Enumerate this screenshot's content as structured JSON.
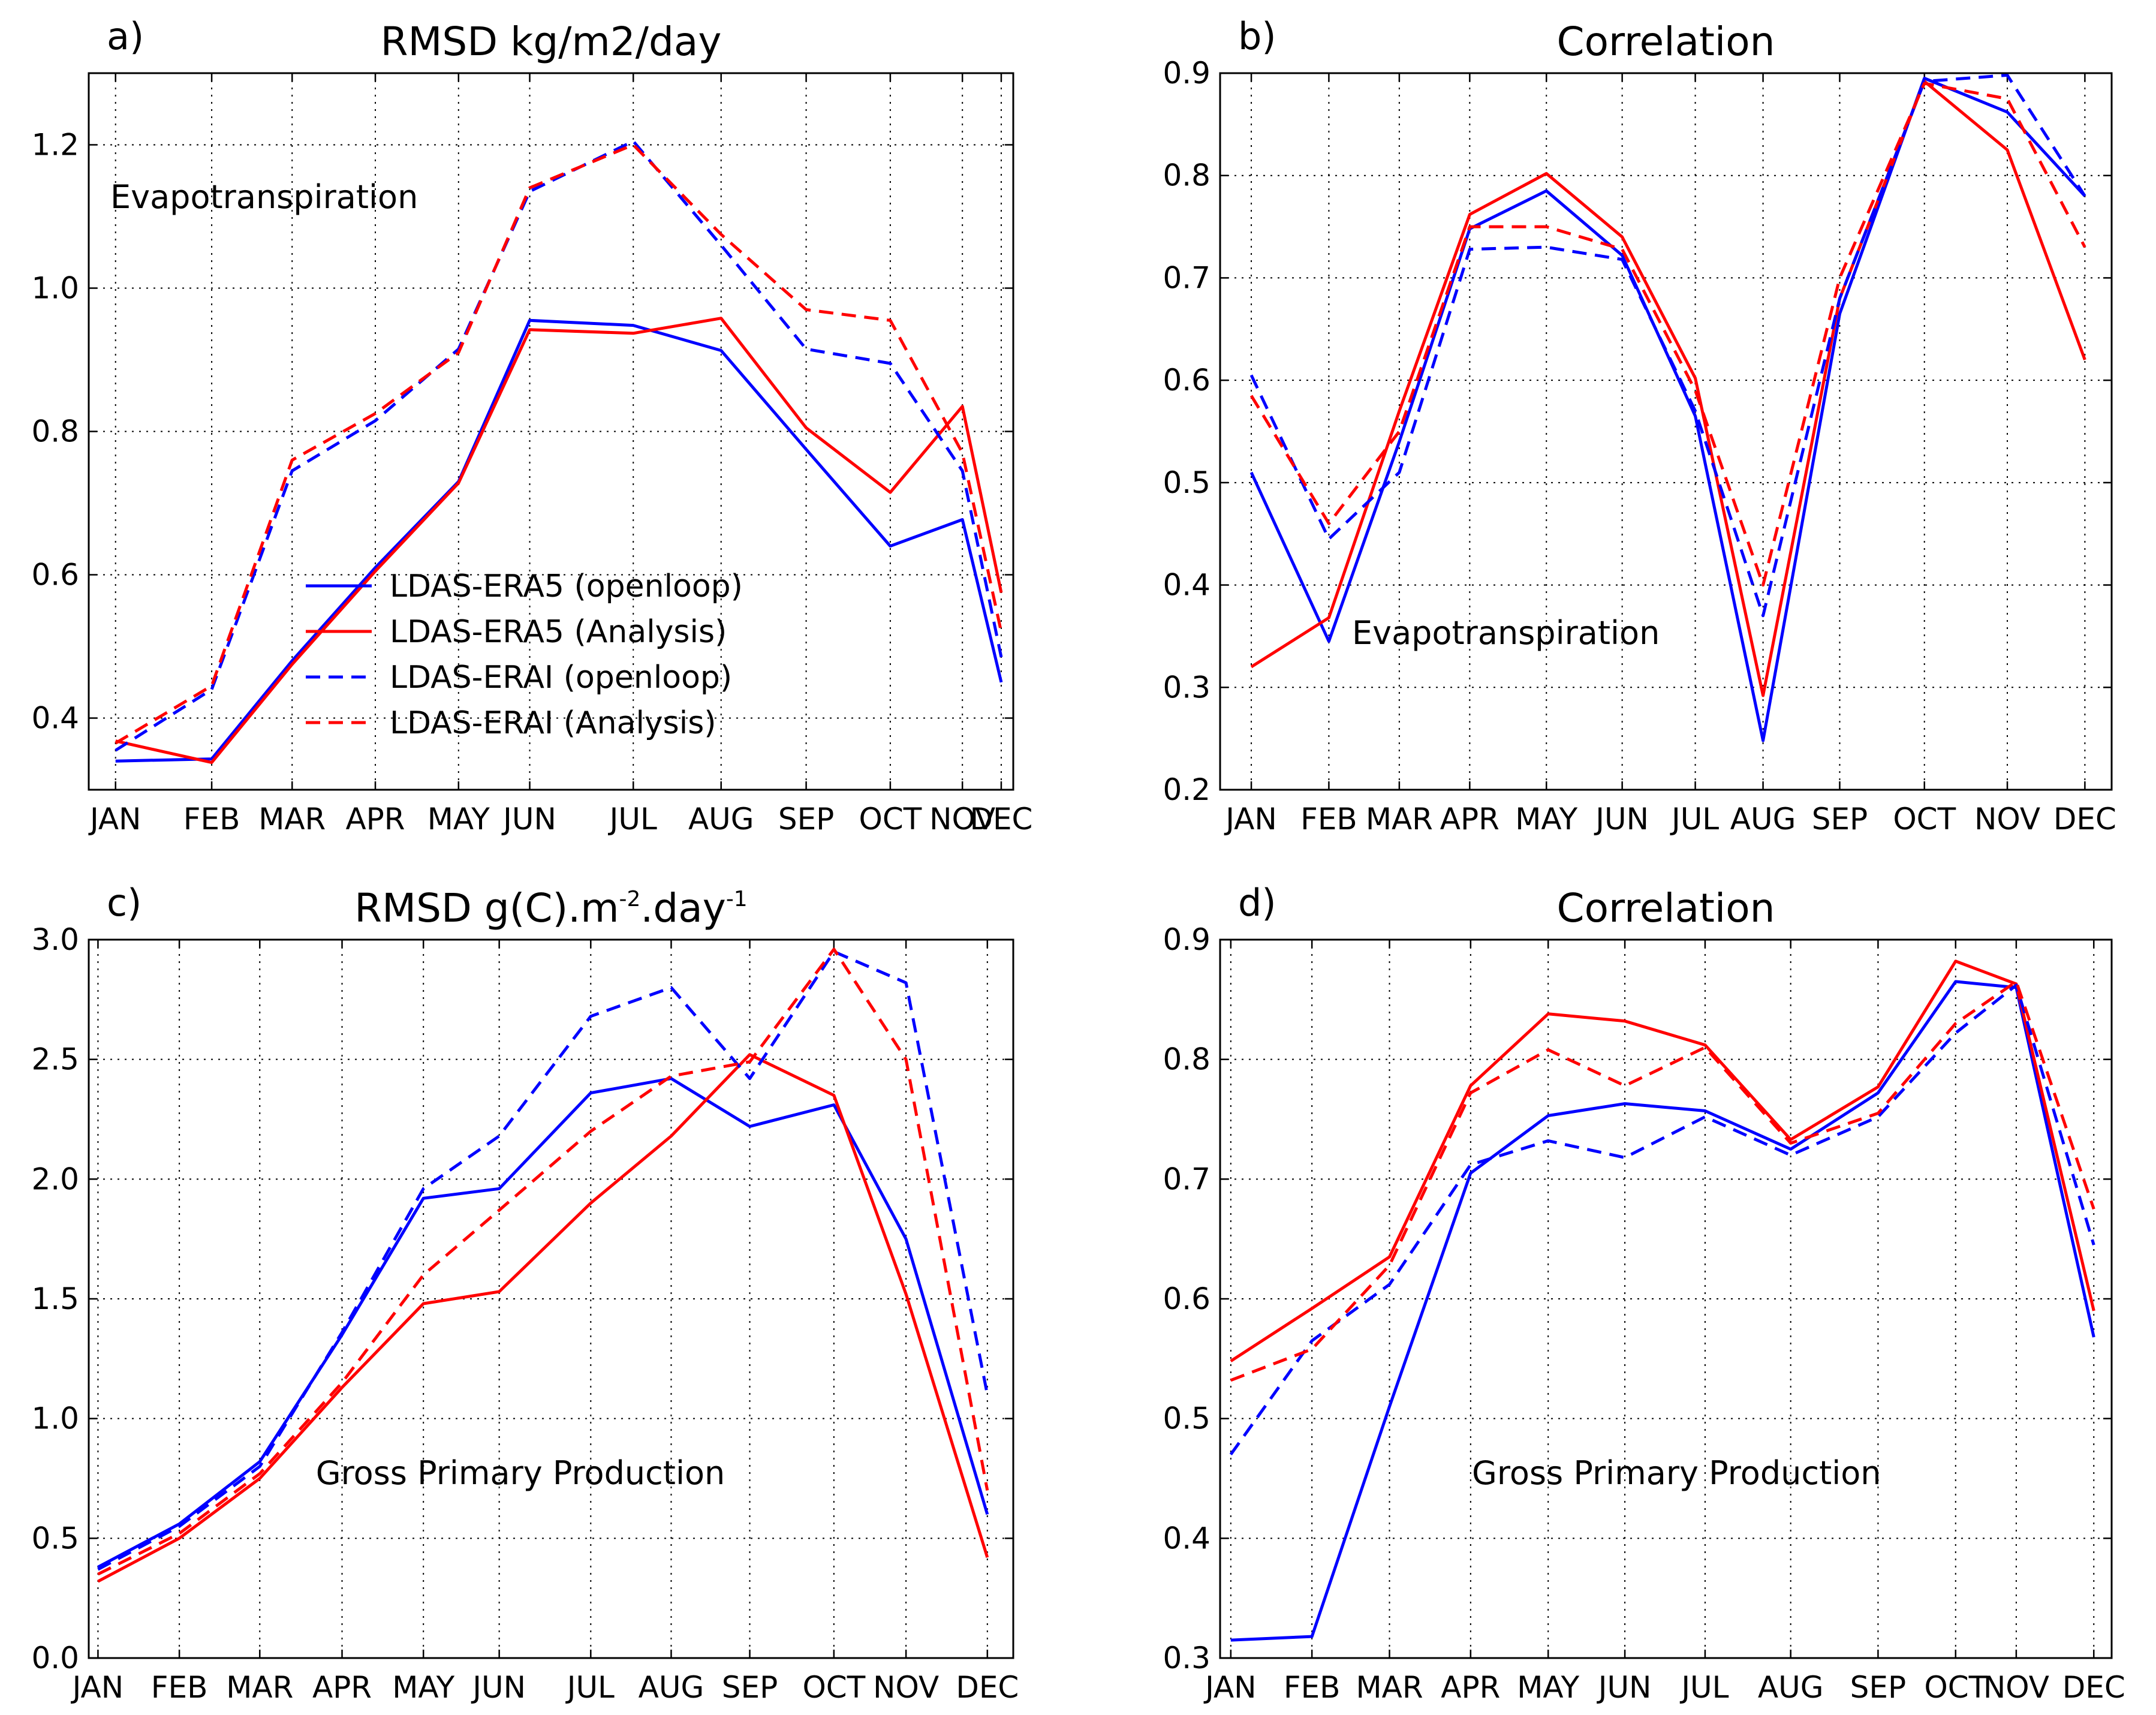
{
  "figure": {
    "months": [
      "JAN",
      "FEB",
      "MAR",
      "APR",
      "MAY",
      "JUN",
      "JUL",
      "AUG",
      "SEP",
      "OCT",
      "NOV",
      "DEC"
    ],
    "series_styles": [
      {
        "name": "LDAS-ERA5 (openloop)",
        "color": "#0000ff",
        "dash": "solid"
      },
      {
        "name": "LDAS-ERA5 (Analysis)",
        "color": "#ff0000",
        "dash": "solid"
      },
      {
        "name": "LDAS-ERAI (openloop)",
        "color": "#0000ff",
        "dash": "dashed"
      },
      {
        "name": "LDAS-ERAI (Analysis)",
        "color": "#ff0000",
        "dash": "dashed"
      }
    ]
  },
  "chart_data": [
    {
      "type": "line",
      "panel": "a)",
      "title": "RMSD kg/m2/day",
      "annotation": "Evapotranspiration",
      "legend_position": "center",
      "categories": [
        "JAN",
        "FEB",
        "MAR",
        "APR",
        "MAY",
        "JUN",
        "JUL",
        "AUG",
        "SEP",
        "OCT",
        "NOV",
        "DEC"
      ],
      "ylim": [
        0.3,
        1.3
      ],
      "yticks": [
        0.4,
        0.6,
        0.8,
        1.0,
        1.2
      ],
      "ytick_labels": [
        "0.4",
        "0.6",
        "0.8",
        "1.0",
        "1.2"
      ],
      "series": [
        {
          "name": "LDAS-ERA5 (openloop)",
          "values": [
            0.34,
            0.343,
            0.48,
            0.61,
            0.73,
            0.955,
            0.948,
            0.913,
            0.775,
            0.64,
            0.677,
            0.45
          ]
        },
        {
          "name": "LDAS-ERA5 (Analysis)",
          "values": [
            0.368,
            0.338,
            0.475,
            0.605,
            0.728,
            0.942,
            0.937,
            0.958,
            0.805,
            0.715,
            0.835,
            0.575
          ]
        },
        {
          "name": "LDAS-ERAI (openloop)",
          "values": [
            0.355,
            0.44,
            0.745,
            0.815,
            0.915,
            1.135,
            1.205,
            1.06,
            0.915,
            0.895,
            0.745,
            0.485
          ]
        },
        {
          "name": "LDAS-ERAI (Analysis)",
          "values": [
            0.365,
            0.445,
            0.76,
            0.825,
            0.91,
            1.14,
            1.2,
            1.075,
            0.97,
            0.955,
            0.77,
            0.52
          ]
        }
      ]
    },
    {
      "type": "line",
      "panel": "b)",
      "title": "Correlation",
      "annotation": "Evapotranspiration",
      "categories": [
        "JAN",
        "FEB",
        "MAR",
        "APR",
        "MAY",
        "JUN",
        "JUL",
        "AUG",
        "SEP",
        "OCT",
        "NOV",
        "DEC"
      ],
      "ylim": [
        0.2,
        0.9
      ],
      "yticks": [
        0.2,
        0.3,
        0.4,
        0.5,
        0.6,
        0.7,
        0.8,
        0.9
      ],
      "ytick_labels": [
        "0.2",
        "0.3",
        "0.4",
        "0.5",
        "0.6",
        "0.7",
        "0.8",
        "0.9"
      ],
      "series": [
        {
          "name": "LDAS-ERA5 (openloop)",
          "values": [
            0.51,
            0.345,
            0.54,
            0.748,
            0.785,
            0.722,
            0.565,
            0.248,
            0.665,
            0.895,
            0.862,
            0.78
          ]
        },
        {
          "name": "LDAS-ERA5 (Analysis)",
          "values": [
            0.32,
            0.368,
            0.57,
            0.762,
            0.802,
            0.74,
            0.602,
            0.292,
            0.68,
            0.892,
            0.825,
            0.62
          ]
        },
        {
          "name": "LDAS-ERAI (openloop)",
          "values": [
            0.605,
            0.445,
            0.51,
            0.728,
            0.73,
            0.718,
            0.57,
            0.37,
            0.68,
            0.892,
            0.898,
            0.78
          ]
        },
        {
          "name": "LDAS-ERAI (Analysis)",
          "values": [
            0.585,
            0.46,
            0.55,
            0.75,
            0.75,
            0.728,
            0.59,
            0.4,
            0.7,
            0.89,
            0.875,
            0.73
          ]
        }
      ]
    },
    {
      "type": "line",
      "panel": "c)",
      "title": "RMSD g(C).m",
      "title_sup1": "-2",
      "title_mid": ".day",
      "title_sup2": "-1",
      "annotation": "Gross Primary Production",
      "categories": [
        "JAN",
        "FEB",
        "MAR",
        "APR",
        "MAY",
        "JUN",
        "JUL",
        "AUG",
        "SEP",
        "OCT",
        "NOV",
        "DEC"
      ],
      "ylim": [
        0.0,
        3.0
      ],
      "yticks": [
        0.0,
        0.5,
        1.0,
        1.5,
        2.0,
        2.5,
        3.0
      ],
      "ytick_labels": [
        "0.0",
        "0.5",
        "1.0",
        "1.5",
        "2.0",
        "2.5",
        "3.0"
      ],
      "series": [
        {
          "name": "LDAS-ERA5 (openloop)",
          "values": [
            0.38,
            0.56,
            0.82,
            1.35,
            1.92,
            1.96,
            2.36,
            2.42,
            2.22,
            2.31,
            1.75,
            0.6
          ]
        },
        {
          "name": "LDAS-ERA5 (Analysis)",
          "values": [
            0.32,
            0.5,
            0.75,
            1.13,
            1.48,
            1.53,
            1.9,
            2.18,
            2.52,
            2.35,
            1.52,
            0.42
          ]
        },
        {
          "name": "LDAS-ERAI (openloop)",
          "values": [
            0.37,
            0.55,
            0.8,
            1.36,
            1.96,
            2.18,
            2.68,
            2.8,
            2.42,
            2.95,
            2.82,
            1.1
          ]
        },
        {
          "name": "LDAS-ERAI (Analysis)",
          "values": [
            0.35,
            0.52,
            0.77,
            1.15,
            1.6,
            1.87,
            2.2,
            2.43,
            2.49,
            2.96,
            2.5,
            0.7
          ]
        }
      ]
    },
    {
      "type": "line",
      "panel": "d)",
      "title": "Correlation",
      "annotation": "Gross Primary Production",
      "categories": [
        "JAN",
        "FEB",
        "MAR",
        "APR",
        "MAY",
        "JUN",
        "JUL",
        "AUG",
        "SEP",
        "OCT",
        "NOV",
        "DEC"
      ],
      "ylim": [
        0.3,
        0.9
      ],
      "yticks": [
        0.3,
        0.4,
        0.5,
        0.6,
        0.7,
        0.8,
        0.9
      ],
      "ytick_labels": [
        "0.3",
        "0.4",
        "0.5",
        "0.6",
        "0.7",
        "0.8",
        "0.9"
      ],
      "series": [
        {
          "name": "LDAS-ERA5 (openloop)",
          "values": [
            0.315,
            0.318,
            0.51,
            0.705,
            0.753,
            0.763,
            0.757,
            0.725,
            0.772,
            0.865,
            0.86,
            0.568
          ]
        },
        {
          "name": "LDAS-ERA5 (Analysis)",
          "values": [
            0.548,
            0.592,
            0.635,
            0.778,
            0.838,
            0.832,
            0.812,
            0.733,
            0.777,
            0.882,
            0.863,
            0.59
          ]
        },
        {
          "name": "LDAS-ERAI (openloop)",
          "values": [
            0.47,
            0.565,
            0.612,
            0.712,
            0.732,
            0.718,
            0.752,
            0.72,
            0.752,
            0.822,
            0.862,
            0.645
          ]
        },
        {
          "name": "LDAS-ERAI (Analysis)",
          "values": [
            0.532,
            0.558,
            0.628,
            0.772,
            0.808,
            0.778,
            0.81,
            0.73,
            0.755,
            0.83,
            0.865,
            0.675
          ]
        }
      ]
    }
  ]
}
